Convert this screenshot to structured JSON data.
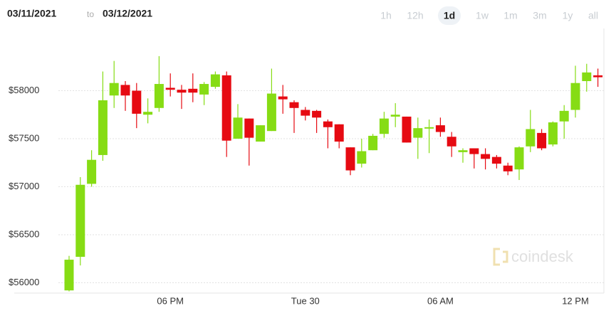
{
  "header": {
    "from": "03/11/2021",
    "to_word": "to",
    "to": "03/12/2021",
    "ranges": [
      "1h",
      "12h",
      "1d",
      "1w",
      "1m",
      "3m",
      "1y",
      "all"
    ],
    "selected_range": "1d"
  },
  "chart_data": {
    "type": "candlestick",
    "watermark": "coindesk",
    "categories": [
      null,
      null,
      null,
      null,
      null,
      null,
      null,
      null,
      null,
      "06 PM",
      null,
      null,
      null,
      null,
      null,
      null,
      null,
      null,
      null,
      null,
      null,
      "Tue 30",
      null,
      null,
      null,
      null,
      null,
      null,
      null,
      null,
      null,
      null,
      null,
      "06 AM",
      null,
      null,
      null,
      null,
      null,
      null,
      null,
      null,
      null,
      null,
      null,
      "12 PM",
      null,
      null
    ],
    "open": [
      55920,
      56270,
      57030,
      57330,
      57950,
      58060,
      58000,
      57750,
      57820,
      58030,
      58010,
      58020,
      57960,
      58040,
      58160,
      57500,
      57710,
      57470,
      57580,
      57940,
      57880,
      57800,
      57790,
      57680,
      57650,
      57410,
      57240,
      57380,
      57550,
      57730,
      57730,
      57510,
      57610,
      57640,
      57520,
      57360,
      57400,
      57340,
      57310,
      57220,
      57180,
      57420,
      57560,
      57440,
      57680,
      57800,
      58100,
      58160
    ],
    "high": [
      56280,
      57100,
      57380,
      58200,
      58310,
      58100,
      58080,
      57920,
      58360,
      58180,
      58060,
      58180,
      58090,
      58200,
      58200,
      57860,
      57710,
      57640,
      58230,
      58060,
      57900,
      57830,
      57800,
      57700,
      57650,
      57410,
      57500,
      57550,
      57780,
      57870,
      57730,
      57720,
      57700,
      57720,
      57570,
      57400,
      57400,
      57400,
      57330,
      57250,
      57420,
      57800,
      57600,
      57680,
      57850,
      58260,
      58280,
      58230
    ],
    "low": [
      55910,
      56180,
      57000,
      57270,
      57820,
      57790,
      57610,
      57660,
      57780,
      57940,
      57810,
      57880,
      57850,
      58020,
      57310,
      57500,
      57220,
      57470,
      57580,
      57760,
      57560,
      57690,
      57560,
      57400,
      57400,
      57120,
      57200,
      57380,
      57510,
      57620,
      57460,
      57290,
      57350,
      57520,
      57310,
      57250,
      57190,
      57180,
      57190,
      57120,
      57070,
      57360,
      57380,
      57420,
      57500,
      57720,
      57990,
      58040
    ],
    "close": [
      56240,
      57020,
      57280,
      57900,
      58080,
      57950,
      57760,
      57780,
      58070,
      58010,
      57980,
      57980,
      58070,
      58170,
      57480,
      57720,
      57510,
      57640,
      57970,
      57910,
      57820,
      57740,
      57720,
      57620,
      57470,
      57170,
      57370,
      57530,
      57710,
      57750,
      57460,
      57610,
      57620,
      57570,
      57420,
      57380,
      57340,
      57290,
      57240,
      57160,
      57410,
      57600,
      57400,
      57670,
      57790,
      58080,
      58190,
      58140
    ],
    "up_color": "#86dc14",
    "down_color": "#e60a12",
    "ylim": [
      55870,
      58500
    ],
    "yticks": [
      {
        "value": 56000,
        "label": "$56000"
      },
      {
        "value": 56500,
        "label": "$56500"
      },
      {
        "value": 57000,
        "label": "$57000"
      },
      {
        "value": 57500,
        "label": "$57500"
      },
      {
        "value": 58000,
        "label": "$58000"
      }
    ],
    "grid": true
  }
}
